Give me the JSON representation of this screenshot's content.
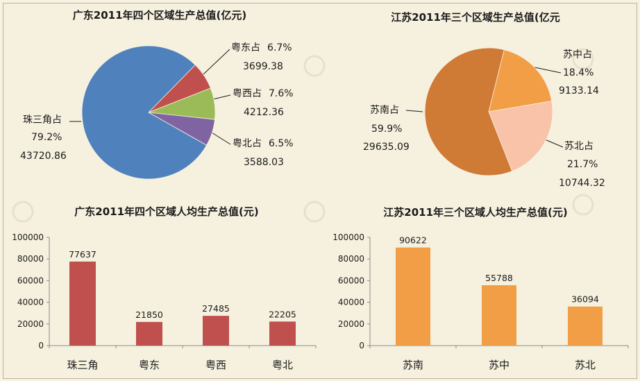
{
  "chart_data": [
    {
      "type": "pie",
      "title": "广东2011年四个区域生产总值(亿元)",
      "slices": [
        {
          "name": "珠三角占",
          "percent": "79.2%",
          "value": 43720.86,
          "color": "#4f81bd"
        },
        {
          "name": "粤东占",
          "percent": "6.7%",
          "value": 3699.38,
          "color": "#c0504d"
        },
        {
          "name": "粤西占",
          "percent": "7.6%",
          "value": 4212.36,
          "color": "#9bbb59"
        },
        {
          "name": "粤北占",
          "percent": "6.5%",
          "value": 3588.03,
          "color": "#8064a2"
        }
      ]
    },
    {
      "type": "pie",
      "title": "江苏2011年三个区域生产总值(亿元",
      "slices": [
        {
          "name": "苏南占",
          "percent": "59.9%",
          "value": 29635.09,
          "color": "#cf7a35"
        },
        {
          "name": "苏中占",
          "percent": "18.4%",
          "value": 9133.14,
          "color": "#f29e46"
        },
        {
          "name": "苏北占",
          "percent": "21.7%",
          "value": 10744.32,
          "color": "#f8c3a8"
        }
      ]
    },
    {
      "type": "bar",
      "title": "广东2011年四个区域人均生产总值(元)",
      "categories": [
        "珠三角",
        "粤东",
        "粤西",
        "粤北"
      ],
      "values": [
        77637,
        21850,
        27485,
        22205
      ],
      "ylim": [
        0,
        100000
      ],
      "yticks": [
        0,
        20000,
        40000,
        60000,
        80000,
        100000
      ],
      "color": "#c0504d"
    },
    {
      "type": "bar",
      "title": "江苏2011年三个区域人均生产总值(元)",
      "categories": [
        "苏南",
        "苏中",
        "苏北"
      ],
      "values": [
        90622,
        55788,
        36094
      ],
      "ylim": [
        0,
        100000
      ],
      "yticks": [
        0,
        20000,
        40000,
        60000,
        80000,
        100000
      ],
      "color": "#f29e46"
    }
  ]
}
